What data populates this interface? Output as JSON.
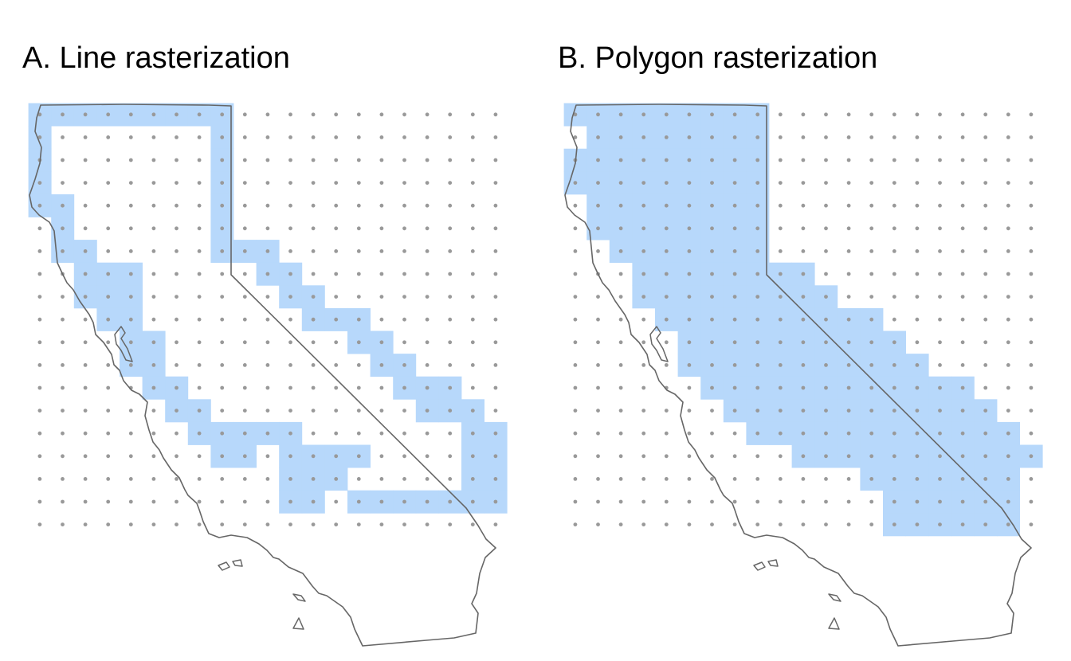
{
  "panels": [
    {
      "title": "A. Line rasterization",
      "method": "line",
      "outline_color": "#666666"
    },
    {
      "title": "B. Polygon rasterization",
      "method": "polygon",
      "outline_color": "#666666"
    }
  ],
  "grid": {
    "columns": 21,
    "rows": 19,
    "dot_color": "#999999",
    "cell_fill_color": "#b7d8fb"
  }
}
